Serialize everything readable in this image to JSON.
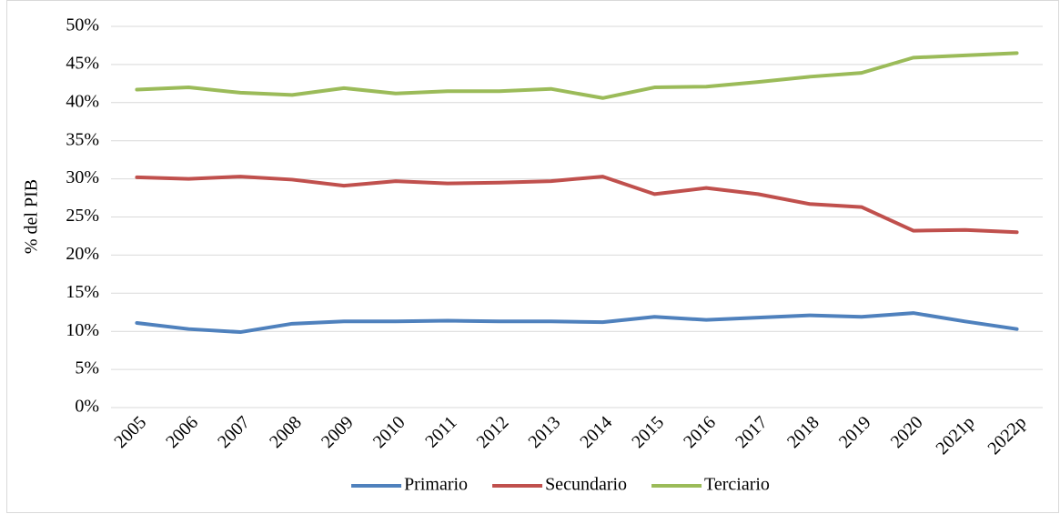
{
  "chart_data": {
    "type": "line",
    "y_label": "% del PIB",
    "categories": [
      "2005",
      "2006",
      "2007",
      "2008",
      "2009",
      "2010",
      "2011",
      "2012",
      "2013",
      "2014",
      "2015",
      "2016",
      "2017",
      "2018",
      "2019",
      "2020",
      "2021p",
      "2022p"
    ],
    "series": [
      {
        "name": "Primario",
        "color": "#4f81bd",
        "values": [
          11.1,
          10.3,
          9.9,
          11.0,
          11.3,
          11.3,
          11.4,
          11.3,
          11.3,
          11.2,
          11.9,
          11.5,
          11.8,
          12.1,
          11.9,
          12.4,
          11.3,
          10.3
        ]
      },
      {
        "name": "Secundario",
        "color": "#c0504d",
        "values": [
          30.2,
          30.0,
          30.3,
          29.9,
          29.1,
          29.7,
          29.4,
          29.5,
          29.7,
          30.3,
          28.0,
          28.8,
          28.0,
          26.7,
          26.3,
          23.2,
          23.3,
          23.0
        ]
      },
      {
        "name": "Terciario",
        "color": "#9bbb59",
        "values": [
          41.7,
          42.0,
          41.3,
          41.0,
          41.9,
          41.2,
          41.5,
          41.5,
          41.8,
          40.6,
          42.0,
          42.1,
          42.7,
          43.4,
          43.9,
          45.9,
          46.2,
          46.5
        ]
      }
    ],
    "ylim": [
      0,
      50
    ],
    "yticks": [
      {
        "value": 0,
        "label": "0%"
      },
      {
        "value": 5,
        "label": "5%"
      },
      {
        "value": 10,
        "label": "10%"
      },
      {
        "value": 15,
        "label": "15%"
      },
      {
        "value": 20,
        "label": "20%"
      },
      {
        "value": 25,
        "label": "25%"
      },
      {
        "value": 30,
        "label": "30%"
      },
      {
        "value": 35,
        "label": "35%"
      },
      {
        "value": 40,
        "label": "40%"
      },
      {
        "value": 45,
        "label": "45%"
      },
      {
        "value": 50,
        "label": "50%"
      }
    ],
    "grid": true,
    "legend": "bottom"
  }
}
